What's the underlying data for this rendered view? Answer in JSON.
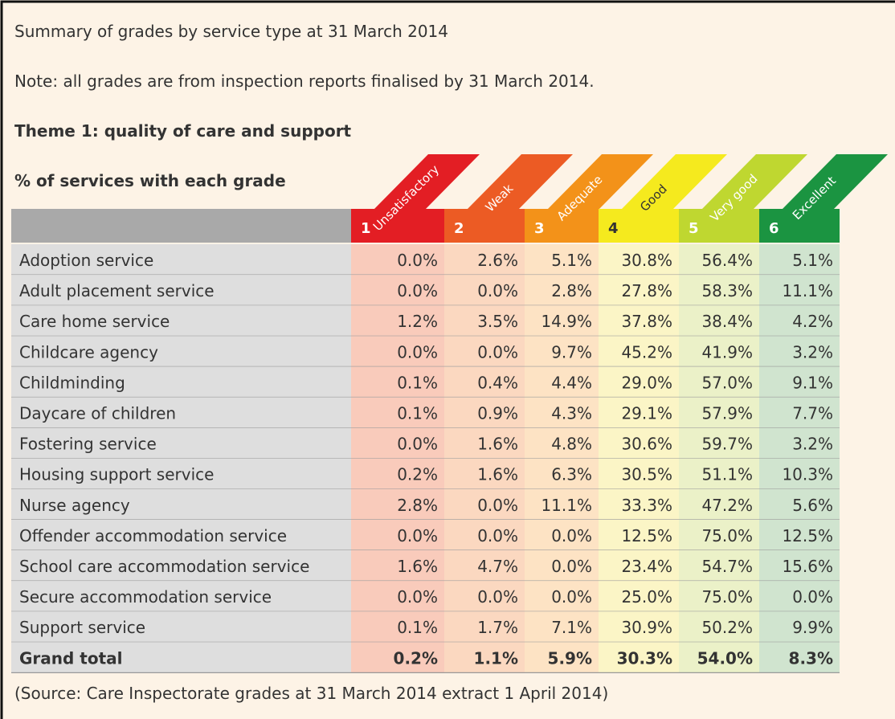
{
  "title": "Summary of grades by service type at 31 March 2014",
  "note": "Note: all grades are from inspection reports finalised by 31 March 2014.",
  "theme": "Theme 1: quality of care and support",
  "subtitle": "% of services with each grade",
  "table": {
    "columns": [
      {
        "number": "1",
        "label": "Unsatisfactory",
        "color": "#e31e24",
        "tint": "#f9cbbb",
        "text_color": "#ffffff"
      },
      {
        "number": "2",
        "label": "Weak",
        "color": "#ec5b24",
        "tint": "#fbd8c0",
        "text_color": "#ffffff"
      },
      {
        "number": "3",
        "label": "Adequate",
        "color": "#f39219",
        "tint": "#fde3c4",
        "text_color": "#ffffff"
      },
      {
        "number": "4",
        "label": "Good",
        "color": "#f5ea1e",
        "tint": "#fbf5c6",
        "text_color": "#333333"
      },
      {
        "number": "5",
        "label": "Very good",
        "color": "#bfd730",
        "tint": "#ebf1c8",
        "text_color": "#ffffff"
      },
      {
        "number": "6",
        "label": "Excellent",
        "color": "#1b9441",
        "tint": "#d0e4cf",
        "text_color": "#ffffff"
      }
    ],
    "rows": [
      {
        "label": "Adoption service",
        "cells": [
          "0.0%",
          "2.6%",
          "5.1%",
          "30.8%",
          "56.4%",
          "5.1%"
        ]
      },
      {
        "label": "Adult placement service",
        "cells": [
          "0.0%",
          "0.0%",
          "2.8%",
          "27.8%",
          "58.3%",
          "11.1%"
        ]
      },
      {
        "label": "Care home service",
        "cells": [
          "1.2%",
          "3.5%",
          "14.9%",
          "37.8%",
          "38.4%",
          "4.2%"
        ]
      },
      {
        "label": "Childcare agency",
        "cells": [
          "0.0%",
          "0.0%",
          "9.7%",
          "45.2%",
          "41.9%",
          "3.2%"
        ]
      },
      {
        "label": "Childminding",
        "cells": [
          "0.1%",
          "0.4%",
          "4.4%",
          "29.0%",
          "57.0%",
          "9.1%"
        ]
      },
      {
        "label": "Daycare of children",
        "cells": [
          "0.1%",
          "0.9%",
          "4.3%",
          "29.1%",
          "57.9%",
          "7.7%"
        ]
      },
      {
        "label": "Fostering service",
        "cells": [
          "0.0%",
          "1.6%",
          "4.8%",
          "30.6%",
          "59.7%",
          "3.2%"
        ]
      },
      {
        "label": "Housing support service",
        "cells": [
          "0.2%",
          "1.6%",
          "6.3%",
          "30.5%",
          "51.1%",
          "10.3%"
        ]
      },
      {
        "label": "Nurse agency",
        "cells": [
          "2.8%",
          "0.0%",
          "11.1%",
          "33.3%",
          "47.2%",
          "5.6%"
        ]
      },
      {
        "label": "Offender accommodation service",
        "cells": [
          "0.0%",
          "0.0%",
          "0.0%",
          "12.5%",
          "75.0%",
          "12.5%"
        ]
      },
      {
        "label": "School care accommodation service",
        "cells": [
          "1.6%",
          "4.7%",
          "0.0%",
          "23.4%",
          "54.7%",
          "15.6%"
        ]
      },
      {
        "label": "Secure accommodation service",
        "cells": [
          "0.0%",
          "0.0%",
          "0.0%",
          "25.0%",
          "75.0%",
          "0.0%"
        ]
      },
      {
        "label": "Support service",
        "cells": [
          "0.1%",
          "1.7%",
          "7.1%",
          "30.9%",
          "50.2%",
          "9.9%"
        ]
      },
      {
        "label": "Grand total",
        "cells": [
          "0.2%",
          "1.1%",
          "5.9%",
          "30.3%",
          "54.0%",
          "8.3%"
        ]
      }
    ]
  },
  "source": "(Source: Care Inspectorate grades at 31 March 2014 extract 1 April 2014)"
}
